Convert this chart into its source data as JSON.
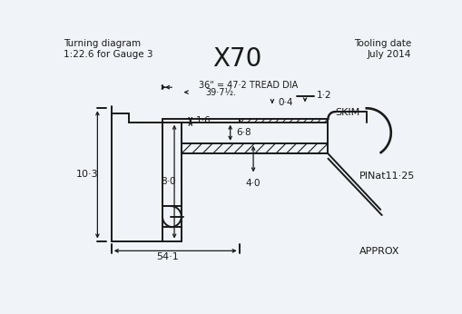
{
  "title": "X70",
  "subtitle_left": "Turning diagram\n1:22.6 for Gauge 3",
  "subtitle_right": "Tooling date\nJuly 2014",
  "bg_color": "#f0f4f8",
  "line_color": "#1a1a1a",
  "annotations": {
    "tread_dia": "36\" = 47·2 TREAD DIA",
    "inner_dia": "39·7½.",
    "dim_12": "1·2",
    "dim_04": "0·4",
    "dim_16": "1·6",
    "dim_68": "6·8",
    "dim_80": "8·0",
    "dim_40": "4·0",
    "dim_103": "10·3",
    "dim_541": "54·1",
    "skim": "SKIM",
    "pin": "PINat11·25",
    "approx": "APPROX"
  }
}
